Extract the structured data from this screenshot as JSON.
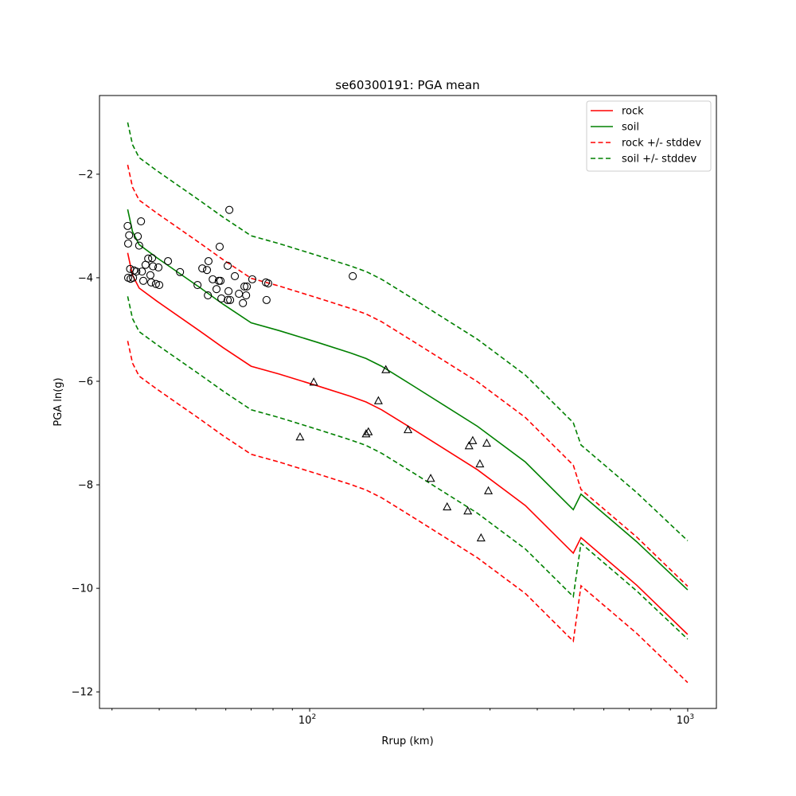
{
  "chart_data": {
    "type": "line",
    "title": "se60300191: PGA mean",
    "xlabel": "Rrup (km)",
    "ylabel": "PGA ln(g)",
    "xscale": "log",
    "xlim": [
      27.8,
      1191
    ],
    "ylim": [
      -12.32,
      -0.48
    ],
    "grid": false,
    "legend_position": "top-right",
    "x_major_ticks": [
      {
        "value": 100,
        "base": "10",
        "exp": "2"
      },
      {
        "value": 1000,
        "base": "10",
        "exp": "3"
      }
    ],
    "x_minor_ticks": [
      30,
      40,
      50,
      60,
      70,
      80,
      90,
      200,
      300,
      400,
      500,
      600,
      700,
      800,
      900
    ],
    "y_ticks": [
      {
        "value": -12,
        "label": "−12"
      },
      {
        "value": -10,
        "label": "−10"
      },
      {
        "value": -8,
        "label": "−8"
      },
      {
        "value": -6,
        "label": "−6"
      },
      {
        "value": -4,
        "label": "−4"
      },
      {
        "value": -2,
        "label": "−2"
      }
    ],
    "x": [
      33,
      34,
      35.4,
      39.4,
      51,
      59,
      70,
      83,
      105,
      128,
      141,
      155,
      189,
      278,
      372,
      498,
      522,
      733,
      1000
    ],
    "series": [
      {
        "name": "rock",
        "color": "#ff0000",
        "dash": false,
        "values": [
          -3.52,
          -3.95,
          -4.2,
          -4.45,
          -5.02,
          -5.35,
          -5.71,
          -5.86,
          -6.09,
          -6.29,
          -6.4,
          -6.55,
          -6.94,
          -7.71,
          -8.4,
          -9.32,
          -9.02,
          -9.94,
          -10.89
        ]
      },
      {
        "name": "soil",
        "color": "#008000",
        "dash": false,
        "values": [
          -2.68,
          -3.11,
          -3.36,
          -3.61,
          -4.18,
          -4.51,
          -4.87,
          -5.02,
          -5.25,
          -5.45,
          -5.56,
          -5.71,
          -6.1,
          -6.87,
          -7.56,
          -8.48,
          -8.18,
          -9.1,
          -10.03
        ]
      },
      {
        "name": "rock +/- stddev",
        "color": "#ff0000",
        "dash": true,
        "values": [
          -1.82,
          -2.25,
          -2.5,
          -2.75,
          -3.32,
          -3.65,
          -4.01,
          -4.16,
          -4.39,
          -4.59,
          -4.7,
          -4.85,
          -5.24,
          -6.01,
          -6.7,
          -7.62,
          -8.09,
          -9.01,
          -9.96
        ]
      },
      {
        "name": "rock +/- stddev (lower)",
        "legend": false,
        "color": "#ff0000",
        "dash": true,
        "values": [
          -5.22,
          -5.65,
          -5.9,
          -6.15,
          -6.72,
          -7.05,
          -7.41,
          -7.56,
          -7.79,
          -7.99,
          -8.1,
          -8.25,
          -8.64,
          -9.41,
          -10.1,
          -11.02,
          -9.95,
          -10.87,
          -11.82
        ]
      },
      {
        "name": "soil +/- stddev",
        "color": "#008000",
        "dash": true,
        "values": [
          -1.0,
          -1.43,
          -1.68,
          -1.93,
          -2.5,
          -2.83,
          -3.19,
          -3.34,
          -3.57,
          -3.77,
          -3.88,
          -4.03,
          -4.42,
          -5.19,
          -5.88,
          -6.8,
          -7.23,
          -8.15,
          -9.08
        ]
      },
      {
        "name": "soil +/- stddev (lower)",
        "legend": false,
        "color": "#008000",
        "dash": true,
        "values": [
          -4.36,
          -4.79,
          -5.04,
          -5.29,
          -5.86,
          -6.19,
          -6.55,
          -6.7,
          -6.93,
          -7.13,
          -7.24,
          -7.39,
          -7.78,
          -8.55,
          -9.24,
          -10.16,
          -9.13,
          -10.05,
          -10.98
        ]
      }
    ],
    "legend": [
      "rock",
      "soil",
      "rock +/- stddev",
      "soil +/- stddev"
    ],
    "scatter_circles": [
      [
        33.0,
        -3.0
      ],
      [
        33.3,
        -3.18
      ],
      [
        33.1,
        -3.34
      ],
      [
        33.5,
        -3.83
      ],
      [
        33.1,
        -4.0
      ],
      [
        33.6,
        -4.02
      ],
      [
        34.1,
        -4.0
      ],
      [
        34.3,
        -3.86
      ],
      [
        34.8,
        -3.88
      ],
      [
        35.1,
        -3.2
      ],
      [
        35.4,
        -3.38
      ],
      [
        35.8,
        -2.91
      ],
      [
        36.0,
        -3.88
      ],
      [
        36.3,
        -4.06
      ],
      [
        36.8,
        -3.75
      ],
      [
        37.4,
        -3.63
      ],
      [
        37.9,
        -3.95
      ],
      [
        38.1,
        -4.09
      ],
      [
        38.3,
        -3.62
      ],
      [
        38.5,
        -3.78
      ],
      [
        39.2,
        -4.12
      ],
      [
        39.8,
        -3.8
      ],
      [
        40.0,
        -4.14
      ],
      [
        42.2,
        -3.68
      ],
      [
        45.4,
        -3.89
      ],
      [
        50.5,
        -4.14
      ],
      [
        52.0,
        -3.82
      ],
      [
        53.5,
        -3.85
      ],
      [
        54.0,
        -3.68
      ],
      [
        53.8,
        -4.34
      ],
      [
        55.4,
        -4.03
      ],
      [
        56.7,
        -4.22
      ],
      [
        57.5,
        -4.06
      ],
      [
        57.8,
        -3.4
      ],
      [
        58.1,
        -4.06
      ],
      [
        58.4,
        -4.4
      ],
      [
        60.7,
        -3.77
      ],
      [
        60.7,
        -4.43
      ],
      [
        61.0,
        -4.26
      ],
      [
        61.3,
        -2.69
      ],
      [
        61.6,
        -4.43
      ],
      [
        63.4,
        -3.97
      ],
      [
        65.0,
        -4.31
      ],
      [
        66.6,
        -4.49
      ],
      [
        67.2,
        -4.17
      ],
      [
        67.9,
        -4.34
      ],
      [
        68.2,
        -4.17
      ],
      [
        70.5,
        -4.03
      ],
      [
        76.6,
        -4.09
      ],
      [
        76.9,
        -4.43
      ],
      [
        77.7,
        -4.11
      ],
      [
        130,
        -3.97
      ]
    ],
    "scatter_triangles": [
      [
        94.3,
        -7.08
      ],
      [
        102.5,
        -6.02
      ],
      [
        141,
        -7.02
      ],
      [
        143,
        -6.98
      ],
      [
        152,
        -6.38
      ],
      [
        159,
        -5.78
      ],
      [
        182,
        -6.94
      ],
      [
        209,
        -7.88
      ],
      [
        231,
        -8.43
      ],
      [
        262,
        -8.51
      ],
      [
        264,
        -7.25
      ],
      [
        270,
        -7.15
      ],
      [
        282,
        -7.6
      ],
      [
        284,
        -9.03
      ],
      [
        294,
        -7.2
      ],
      [
        297,
        -8.12
      ]
    ]
  }
}
